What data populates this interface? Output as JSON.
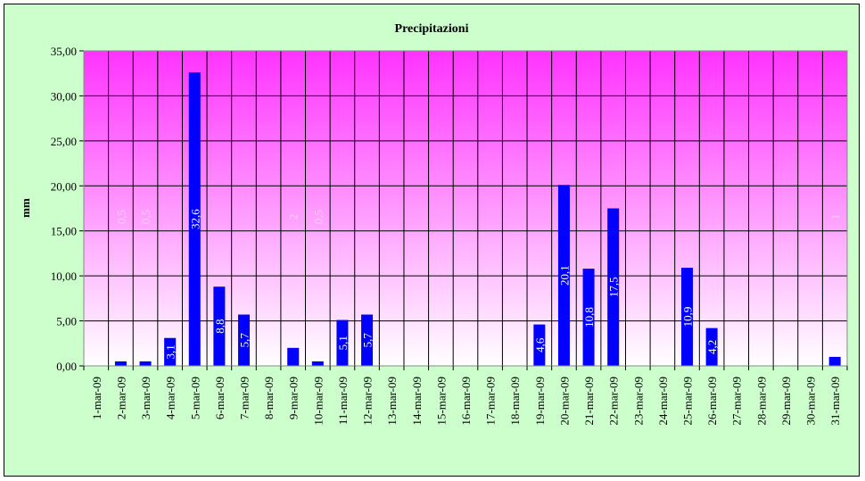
{
  "chart_data": {
    "type": "bar",
    "title": "Precipitazioni",
    "xlabel": "",
    "ylabel": "mm",
    "ylim": [
      0,
      35
    ],
    "ytick_step": 5,
    "ytick_labels": [
      "0,00",
      "5,00",
      "10,00",
      "15,00",
      "20,00",
      "25,00",
      "30,00",
      "35,00"
    ],
    "grid": true,
    "legend": "none",
    "colors": {
      "bar": "#0000ff",
      "frame_bg": "#ccffcc",
      "plot_top": "#ff33ff",
      "plot_bottom": "#ffffff",
      "label_inside": "#ffffff",
      "label_faint": "#ffccff"
    },
    "categories": [
      "1-mar-09",
      "2-mar-09",
      "3-mar-09",
      "4-mar-09",
      "5-mar-09",
      "6-mar-09",
      "7-mar-09",
      "8-mar-09",
      "9-mar-09",
      "10-mar-09",
      "11-mar-09",
      "12-mar-09",
      "13-mar-09",
      "14-mar-09",
      "15-mar-09",
      "16-mar-09",
      "17-mar-09",
      "18-mar-09",
      "19-mar-09",
      "20-mar-09",
      "21-mar-09",
      "22-mar-09",
      "23-mar-09",
      "24-mar-09",
      "25-mar-09",
      "26-mar-09",
      "27-mar-09",
      "28-mar-09",
      "29-mar-09",
      "30-mar-09",
      "31-mar-09"
    ],
    "values": [
      0,
      0.5,
      0.5,
      3.1,
      32.6,
      8.8,
      5.7,
      0,
      2,
      0.5,
      5.1,
      5.7,
      0,
      0,
      0,
      0,
      0,
      0,
      4.6,
      20.1,
      10.8,
      17.5,
      0,
      0,
      10.9,
      4.2,
      0,
      0,
      0,
      0,
      1
    ],
    "data_labels": [
      "",
      "0,5",
      "0,5",
      "3,1",
      "32,6",
      "8,8",
      "5,7",
      "",
      "2",
      "0,5",
      "5,1",
      "5,7",
      "",
      "",
      "",
      "",
      "",
      "",
      "4,6",
      "20,1",
      "10,8",
      "17,5",
      "",
      "",
      "10,9",
      "4,2",
      "",
      "",
      "",
      "",
      "1"
    ]
  }
}
